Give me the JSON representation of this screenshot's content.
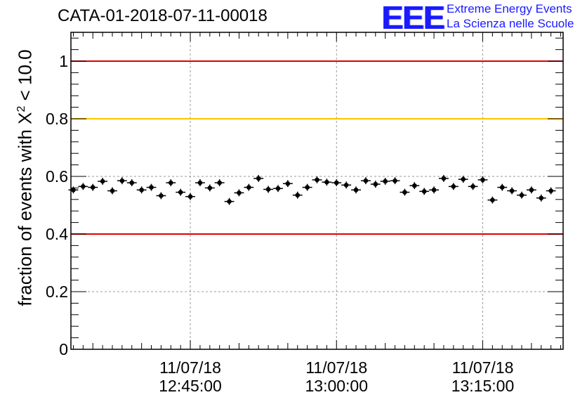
{
  "title": "CATA-01-2018-07-11-00018",
  "logo": {
    "mark": "EEE",
    "line1": "Extreme Energy Events",
    "line2": "La Scienza nelle Scuole",
    "color": "#1a1aff"
  },
  "chart_data": {
    "type": "scatter",
    "title": "CATA-01-2018-07-11-00018",
    "ylabel": {
      "before": "fraction of events with ",
      "symbol": "X",
      "sup": "2",
      "after": " < 10.0"
    },
    "xlabel": "",
    "ylim": [
      0,
      1.1
    ],
    "xlim": [
      "12:32:45",
      "13:23:15"
    ],
    "grid": true,
    "yticks": [
      "0",
      "0.2",
      "0.4",
      "0.6",
      "0.8",
      "1"
    ],
    "xticks": [
      {
        "date": "11/07/18",
        "time": "12:45:00"
      },
      {
        "date": "11/07/18",
        "time": "13:00:00"
      },
      {
        "date": "11/07/18",
        "time": "13:15:00"
      }
    ],
    "reference_lines": [
      {
        "y": 1.0,
        "color": "#e00000"
      },
      {
        "y": 0.8,
        "color": "#ffc400"
      },
      {
        "y": 0.4,
        "color": "#e00000"
      }
    ],
    "x_start": "12:33:00",
    "x_step_seconds": 60,
    "values": [
      0.553,
      0.565,
      0.562,
      0.583,
      0.55,
      0.585,
      0.578,
      0.553,
      0.562,
      0.533,
      0.578,
      0.545,
      0.53,
      0.578,
      0.56,
      0.578,
      0.513,
      0.543,
      0.562,
      0.593,
      0.555,
      0.558,
      0.575,
      0.535,
      0.562,
      0.588,
      0.58,
      0.578,
      0.57,
      0.553,
      0.585,
      0.573,
      0.583,
      0.585,
      0.545,
      0.568,
      0.548,
      0.553,
      0.593,
      0.565,
      0.59,
      0.565,
      0.588,
      0.518,
      0.562,
      0.55,
      0.535,
      0.553,
      0.525,
      0.55
    ],
    "error": 0.012,
    "marker_color": "#000000"
  }
}
